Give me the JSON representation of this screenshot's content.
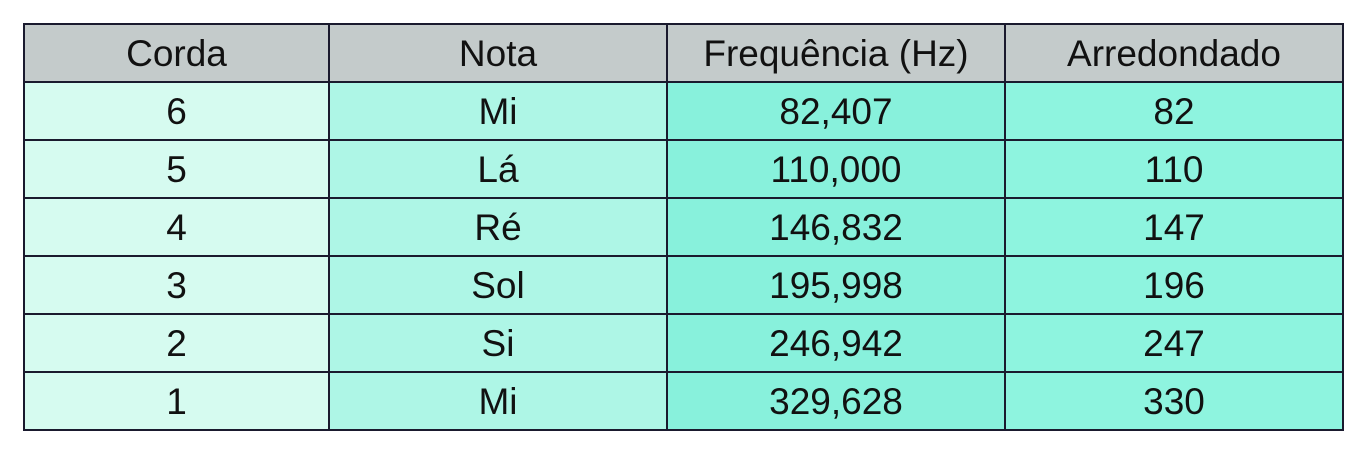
{
  "table": {
    "headers": [
      "Corda",
      "Nota",
      "Frequência (Hz)",
      "Arredondado"
    ],
    "rows": [
      [
        "6",
        "Mi",
        "82,407",
        "82"
      ],
      [
        "5",
        "Lá",
        "110,000",
        "110"
      ],
      [
        "4",
        "Ré",
        "146,832",
        "147"
      ],
      [
        "3",
        "Sol",
        "195,998",
        "196"
      ],
      [
        "2",
        "Si",
        "246,942",
        "247"
      ],
      [
        "1",
        "Mi",
        "329,628",
        "330"
      ]
    ]
  },
  "colors": {
    "header_bg": "#c4cbcb",
    "corda_bg": "#d6fbf0",
    "nota_bg": "#aef6e6",
    "freq_bg": "#88f1dc",
    "arred_bg": "#8ef4df",
    "border": "#1a1a2e"
  }
}
